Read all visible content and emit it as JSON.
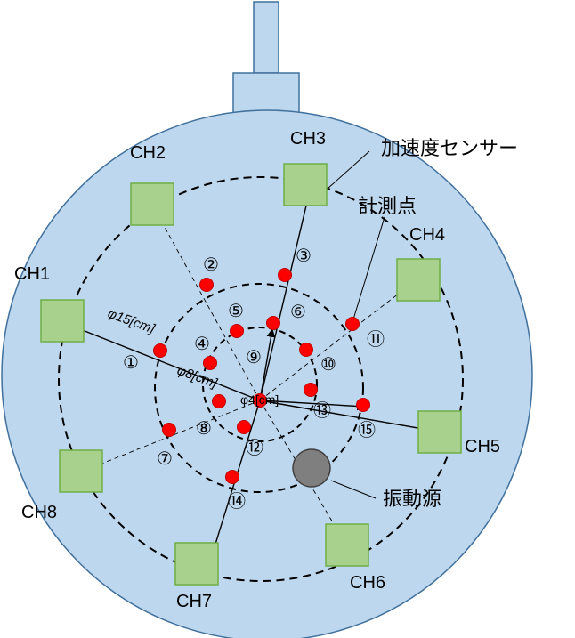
{
  "diagram": {
    "channels": [
      "CH1",
      "CH2",
      "CH3",
      "CH4",
      "CH5",
      "CH6",
      "CH7",
      "CH8"
    ],
    "annotations": {
      "sensor": "加速度センサー",
      "point": "計測点",
      "source": "振動源"
    },
    "diameters": {
      "outer": "φ15[cm]",
      "middle": "φ8[cm]",
      "inner": "φ4[cm]"
    },
    "points": [
      "①",
      "②",
      "③",
      "④",
      "⑤",
      "⑥",
      "⑦",
      "⑧",
      "⑨",
      "⑩",
      "⑪",
      "⑫",
      "⑬",
      "⑭",
      "⑮"
    ],
    "colors": {
      "plate": "#bdd7ee",
      "plate_stroke": "#41719c",
      "sensor": "#a9d18e",
      "sensor_stroke": "#70ad47",
      "point": "#ff0000",
      "source": "#7f7f7f"
    }
  }
}
